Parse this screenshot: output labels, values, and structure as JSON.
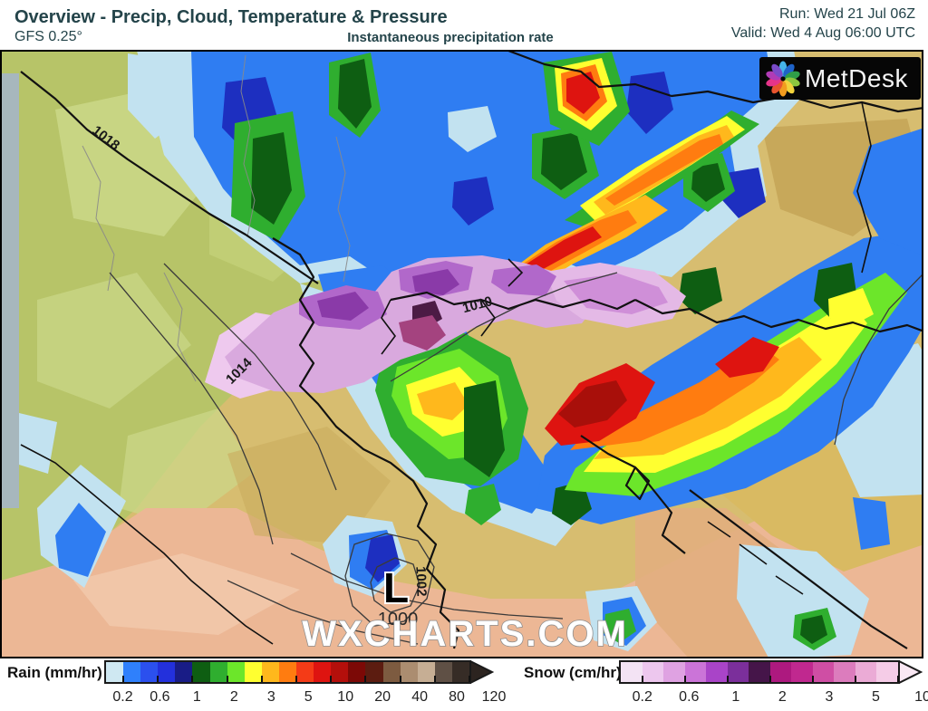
{
  "header": {
    "title": "Overview - Precip, Cloud, Temperature & Pressure",
    "model": "GFS 0.25°",
    "subtitle": "Instantaneous precipitation rate",
    "run": "Run: Wed 21 Jul 06Z",
    "valid": "Valid: Wed 4 Aug 06:00 UTC"
  },
  "branding": {
    "logo_text": "MetDesk"
  },
  "colors": {
    "header_text": "#24444a",
    "logo_bg": "#060606",
    "logo_petals": [
      "#45b3e8",
      "#1e62c8",
      "#2f9e48",
      "#8cc63f",
      "#f2d33c",
      "#f29c1f",
      "#e8542e",
      "#e63489",
      "#b13bb5",
      "#7a4bc8"
    ]
  },
  "map": {
    "watermark": "WXCHARTS.COM",
    "low_marker": "L",
    "isobar_labels": [
      "1018",
      "1014",
      "1010",
      "1002",
      "1000"
    ]
  },
  "legend": {
    "rain": {
      "label": "Rain (mm/hr)",
      "unit": "mm/hr",
      "ticks": [
        "0.2",
        "0.6",
        "1",
        "2",
        "3",
        "5",
        "10",
        "20",
        "40",
        "80",
        "120"
      ],
      "colors": [
        "#cfe8f2",
        "#2f80fc",
        "#2b50ee",
        "#2330dc",
        "#191c86",
        "#0e5e12",
        "#2fae2f",
        "#6ce62a",
        "#ffff30",
        "#ffb81c",
        "#ff7c10",
        "#f43b17",
        "#de1410",
        "#b40f0b",
        "#7c0906",
        "#5c1c10",
        "#7d5b40",
        "#ab8d70",
        "#c6ae94",
        "#5f5045",
        "#362c26"
      ],
      "arrow_color": "#2c2420"
    },
    "snow": {
      "label": "Snow (cm/hr)",
      "unit": "cm/hr",
      "ticks": [
        "0.2",
        "0.6",
        "1",
        "2",
        "3",
        "5",
        "10"
      ],
      "colors": [
        "#f3e3f4",
        "#edc7ee",
        "#dfa2e2",
        "#cb74d8",
        "#a944c8",
        "#7b2f9b",
        "#451549",
        "#ad197f",
        "#c0288f",
        "#cf4ea4",
        "#dc7cbd",
        "#ebabd6",
        "#f5cce7"
      ],
      "arrow_color": "#fae8f4"
    }
  }
}
